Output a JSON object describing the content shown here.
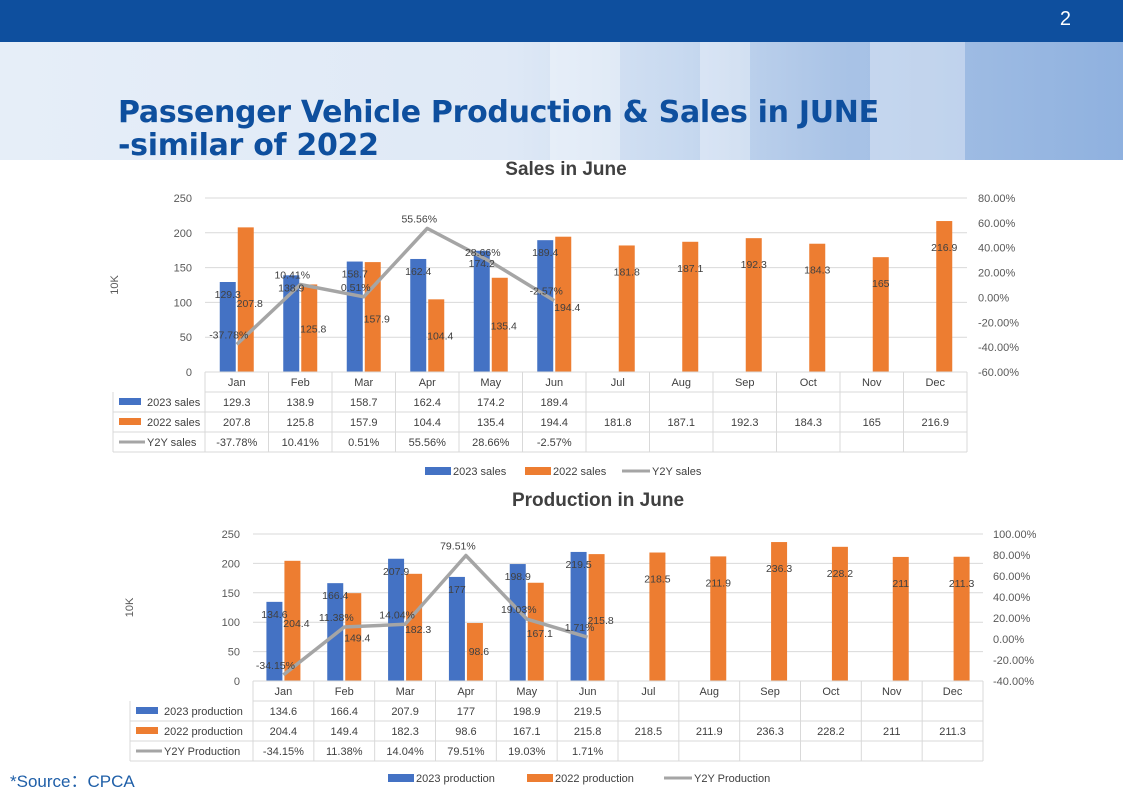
{
  "page": {
    "page_number": "2",
    "title_line1": "Passenger Vehicle Production & Sales in JUNE",
    "title_line2": "-similar of 2022",
    "source": "*Source：CPCA"
  },
  "colors": {
    "bar2023": "#4472c4",
    "bar2022": "#ed7d31",
    "line": "#a5a5a5",
    "brand": "#0e4f9e"
  },
  "chart_data": [
    {
      "type": "bar",
      "title": "Sales in June",
      "ylabel": "10K",
      "ylim": [
        0,
        250
      ],
      "y_ticks": [
        "0",
        "50",
        "100",
        "150",
        "200",
        "250"
      ],
      "y2lim": [
        -0.6,
        0.8
      ],
      "y2_ticks": [
        "-60.00%",
        "-40.00%",
        "-20.00%",
        "0.00%",
        "20.00%",
        "40.00%",
        "60.00%",
        "80.00%"
      ],
      "categories": [
        "Jan",
        "Feb",
        "Mar",
        "Apr",
        "May",
        "Jun",
        "Jul",
        "Aug",
        "Sep",
        "Oct",
        "Nov",
        "Dec"
      ],
      "series": [
        {
          "name": "2023 sales",
          "kind": "bar",
          "values": [
            129.3,
            138.9,
            158.7,
            162.4,
            174.2,
            189.4,
            null,
            null,
            null,
            null,
            null,
            null
          ],
          "labels": [
            "129.3",
            "138.9",
            "158.7",
            "162.4",
            "174.2",
            "189.4",
            "",
            "",
            "",
            "",
            "",
            ""
          ]
        },
        {
          "name": "2022 sales",
          "kind": "bar",
          "values": [
            207.8,
            125.8,
            157.9,
            104.4,
            135.4,
            194.4,
            181.8,
            187.1,
            192.3,
            184.3,
            165,
            216.9
          ],
          "labels": [
            "207.8",
            "125.8",
            "157.9",
            "104.4",
            "135.4",
            "194.4",
            "181.8",
            "187.1",
            "192.3",
            "184.3",
            "165",
            "216.9"
          ]
        },
        {
          "name": "Y2Y sales",
          "kind": "line",
          "axis": "right",
          "values": [
            -0.3778,
            0.1041,
            0.0051,
            0.5556,
            0.2866,
            -0.0257,
            null,
            null,
            null,
            null,
            null,
            null
          ],
          "labels": [
            "-37.78%",
            "10.41%",
            "0.51%",
            "55.56%",
            "28.66%",
            "-2.57%",
            "",
            "",
            "",
            "",
            "",
            ""
          ]
        }
      ],
      "legend": "bottom"
    },
    {
      "type": "bar",
      "title": "Production in June",
      "ylabel": "10K",
      "ylim": [
        0,
        250
      ],
      "y_ticks": [
        "0",
        "50",
        "100",
        "150",
        "200",
        "250"
      ],
      "y2lim": [
        -0.4,
        1.0
      ],
      "y2_ticks": [
        "-40.00%",
        "-20.00%",
        "0.00%",
        "20.00%",
        "40.00%",
        "60.00%",
        "80.00%",
        "100.00%"
      ],
      "categories": [
        "Jan",
        "Feb",
        "Mar",
        "Apr",
        "May",
        "Jun",
        "Jul",
        "Aug",
        "Sep",
        "Oct",
        "Nov",
        "Dec"
      ],
      "series": [
        {
          "name": "2023 production",
          "kind": "bar",
          "values": [
            134.6,
            166.4,
            207.9,
            177,
            198.9,
            219.5,
            null,
            null,
            null,
            null,
            null,
            null
          ],
          "labels": [
            "134.6",
            "166.4",
            "207.9",
            "177",
            "198.9",
            "219.5",
            "",
            "",
            "",
            "",
            "",
            ""
          ]
        },
        {
          "name": "2022 production",
          "kind": "bar",
          "values": [
            204.4,
            149.4,
            182.3,
            98.6,
            167.1,
            215.8,
            218.5,
            211.9,
            236.3,
            228.2,
            211,
            211.3
          ],
          "labels": [
            "204.4",
            "149.4",
            "182.3",
            "98.6",
            "167.1",
            "215.8",
            "218.5",
            "211.9",
            "236.3",
            "228.2",
            "211",
            "211.3"
          ]
        },
        {
          "name": "Y2Y Production",
          "kind": "line",
          "axis": "right",
          "values": [
            -0.3415,
            0.1138,
            0.1404,
            0.7951,
            0.1903,
            0.0171,
            null,
            null,
            null,
            null,
            null,
            null
          ],
          "labels": [
            "-34.15%",
            "11.38%",
            "14.04%",
            "79.51%",
            "19.03%",
            "1.71%",
            "",
            "",
            "",
            "",
            "",
            ""
          ]
        }
      ],
      "legend": "bottom"
    }
  ]
}
